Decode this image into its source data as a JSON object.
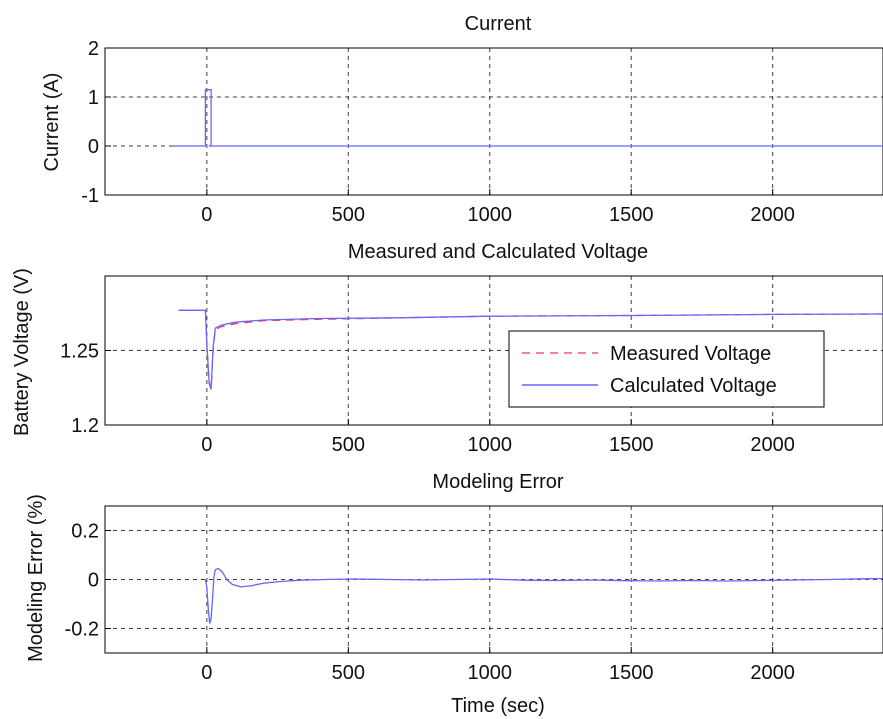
{
  "chart_data": [
    {
      "type": "line",
      "title": "Current",
      "xlabel": "",
      "ylabel": "Current (A)",
      "xlim": [
        -360,
        2390
      ],
      "ylim": [
        -1,
        2
      ],
      "xticks": [
        0,
        500,
        1000,
        1500,
        2000
      ],
      "yticks": [
        -1,
        0,
        1,
        2
      ],
      "grid": true,
      "series": [
        {
          "color": "#6666ff",
          "x": [
            -120,
            -5,
            -5,
            15,
            15,
            30,
            30,
            2390
          ],
          "y": [
            0,
            0,
            1.15,
            1.15,
            0,
            0,
            0,
            0
          ]
        }
      ]
    },
    {
      "type": "line",
      "title": "Measured and Calculated Voltage",
      "xlabel": "",
      "ylabel": "Battery Voltage (V)",
      "xlim": [
        -360,
        2390
      ],
      "ylim": [
        1.2,
        1.3
      ],
      "xticks": [
        0,
        500,
        1000,
        1500,
        2000
      ],
      "yticks": [
        1.2,
        1.25
      ],
      "grid": true,
      "legend": {
        "placement": "lower-right",
        "entries": [
          "Measured Voltage",
          "Calculated Voltage"
        ]
      },
      "series": [
        {
          "name": "Measured Voltage",
          "color": "#ff3355",
          "dashed": true,
          "x": [
            -100,
            -5,
            0,
            8,
            15,
            22,
            30,
            50,
            100,
            200,
            400,
            700,
            1000,
            1500,
            2000,
            2390
          ],
          "y": [
            1.277,
            1.277,
            1.255,
            1.228,
            1.224,
            1.25,
            1.264,
            1.266,
            1.268,
            1.27,
            1.271,
            1.272,
            1.273,
            1.2735,
            1.2742,
            1.2745
          ]
        },
        {
          "name": "Calculated Voltage",
          "color": "#6666ff",
          "dashed": false,
          "x": [
            -100,
            -5,
            0,
            8,
            15,
            22,
            30,
            50,
            100,
            200,
            400,
            700,
            1000,
            1500,
            2000,
            2390
          ],
          "y": [
            1.277,
            1.277,
            1.255,
            1.229,
            1.224,
            1.252,
            1.265,
            1.267,
            1.269,
            1.2705,
            1.2715,
            1.272,
            1.273,
            1.2735,
            1.2742,
            1.2745
          ]
        }
      ]
    },
    {
      "type": "line",
      "title": "Modeling Error",
      "xlabel": "Time (sec)",
      "ylabel": "Modeling Error (%)",
      "xlim": [
        -360,
        2390
      ],
      "ylim": [
        -0.3,
        0.3
      ],
      "xticks": [
        0,
        500,
        1000,
        1500,
        2000
      ],
      "yticks": [
        -0.2,
        0,
        0.2
      ],
      "grid": true,
      "series": [
        {
          "color": "#6666ff",
          "x": [
            -5,
            0,
            5,
            10,
            15,
            20,
            25,
            30,
            40,
            55,
            70,
            90,
            120,
            160,
            200,
            260,
            330,
            420,
            520,
            640,
            760,
            880,
            1000,
            1120,
            1240,
            1360,
            1480,
            1600,
            1720,
            1840,
            1960,
            2080,
            2200,
            2320,
            2390
          ],
          "y": [
            0,
            -0.03,
            -0.12,
            -0.18,
            -0.16,
            -0.08,
            0.01,
            0.04,
            0.045,
            0.03,
            0.0,
            -0.02,
            -0.03,
            -0.025,
            -0.015,
            -0.008,
            -0.003,
            0.0,
            0.002,
            0.0,
            -0.002,
            0.0,
            0.002,
            -0.003,
            -0.004,
            -0.002,
            -0.005,
            -0.006,
            -0.004,
            -0.006,
            -0.004,
            -0.002,
            0.0,
            0.003,
            0.004
          ]
        }
      ]
    }
  ]
}
